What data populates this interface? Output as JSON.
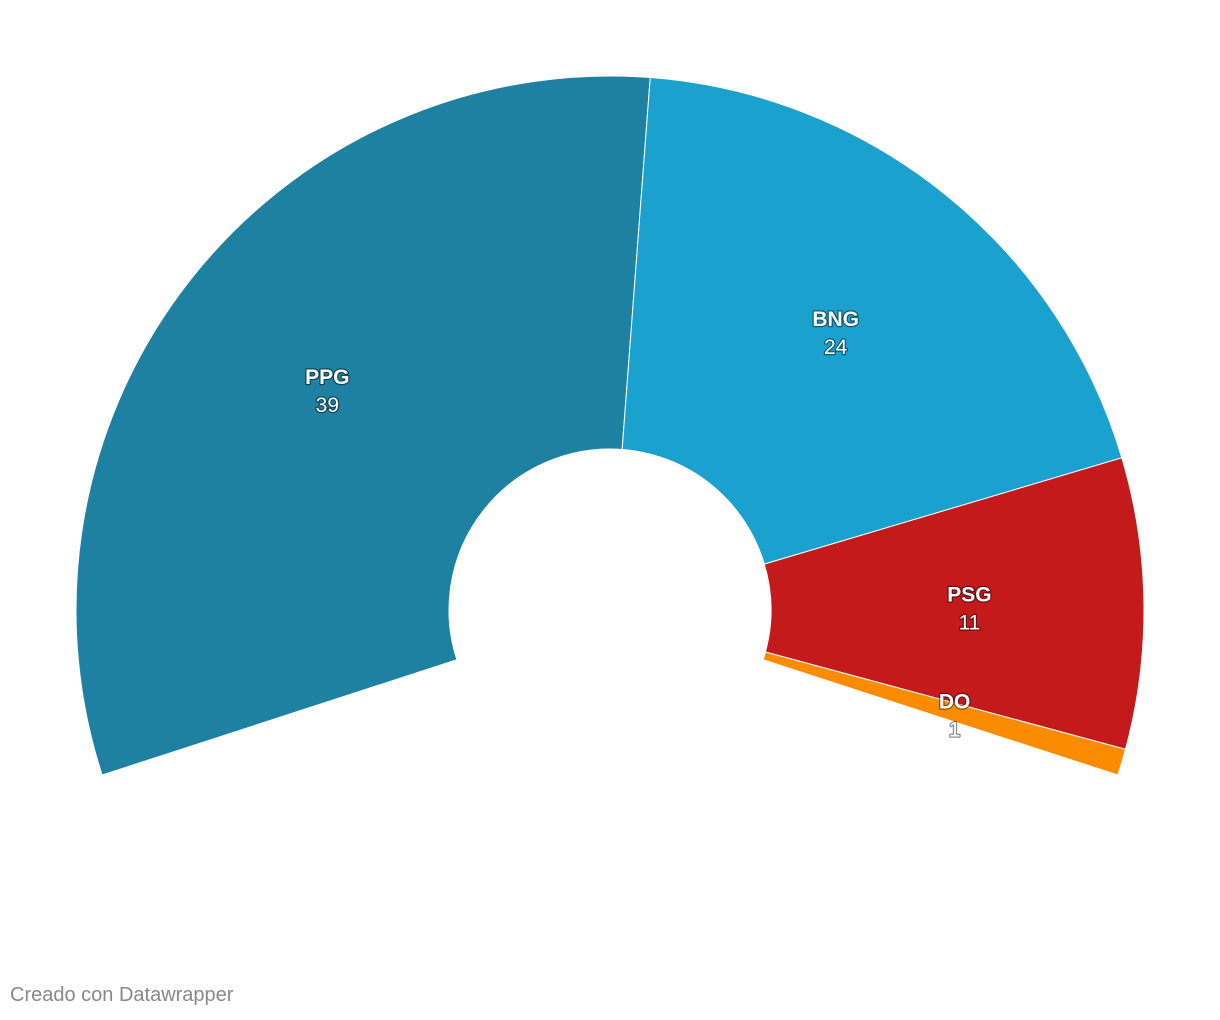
{
  "chart_data": {
    "type": "pie",
    "subtype": "semicircle-parliament-donut",
    "title": "",
    "categories": [
      "PPG",
      "BNG",
      "PSG",
      "DO"
    ],
    "values": [
      39,
      24,
      11,
      1
    ],
    "colors": [
      "#1f81a1",
      "#1aa1ce",
      "#c41a1c",
      "#fb8b00"
    ],
    "label_color": "#ffffff"
  },
  "footer": {
    "credit": "Creado con Datawrapper"
  }
}
